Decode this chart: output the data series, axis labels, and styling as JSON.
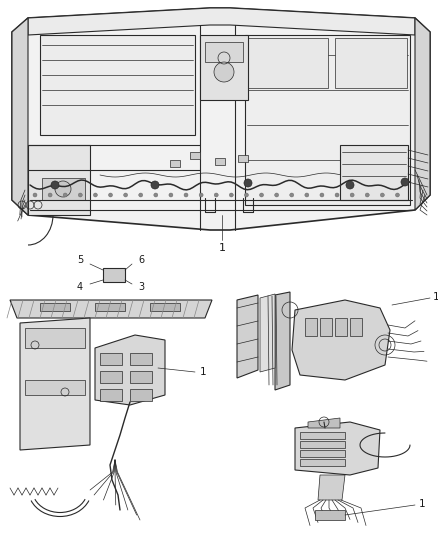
{
  "background_color": "#ffffff",
  "line_color": "#2a2a2a",
  "label_color": "#1a1a1a",
  "figsize": [
    4.39,
    5.33
  ],
  "dpi": 100,
  "line_widths": {
    "thin": 0.5,
    "med": 0.8,
    "thick": 1.2,
    "outer": 1.4
  },
  "gray_fill": "#e8e8e8",
  "mid_fill": "#d8d8d8",
  "dark_fill": "#b0b0b0"
}
